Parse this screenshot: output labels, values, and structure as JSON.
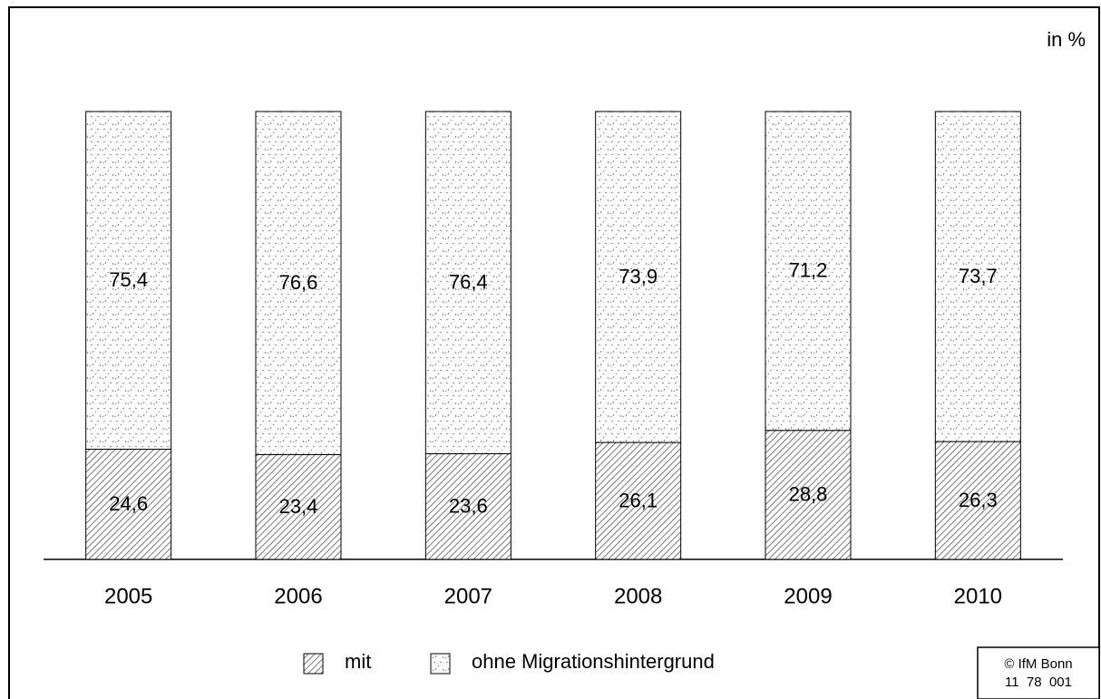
{
  "chart_data": {
    "type": "stacked_bar",
    "unit_label": "in %",
    "categories": [
      "2005",
      "2006",
      "2007",
      "2008",
      "2009",
      "2010"
    ],
    "series": [
      {
        "name": "mit",
        "color": "#000000",
        "pattern": "hatch",
        "values": [
          24.6,
          23.4,
          23.6,
          26.1,
          28.8,
          26.3
        ],
        "value_labels": [
          "24,6",
          "23,4",
          "23,6",
          "26,1",
          "28,8",
          "26,3"
        ]
      },
      {
        "name": "ohne Migrationshintergrund",
        "color": "#000000",
        "pattern": "dots",
        "values": [
          75.4,
          76.6,
          76.4,
          73.9,
          71.2,
          73.7
        ],
        "value_labels": [
          "75,4",
          "76,6",
          "76,4",
          "73,9",
          "71,2",
          "73,7"
        ]
      }
    ],
    "legend": "bottom",
    "annotations": [
      "© IfM Bonn",
      "11  78  001"
    ]
  }
}
